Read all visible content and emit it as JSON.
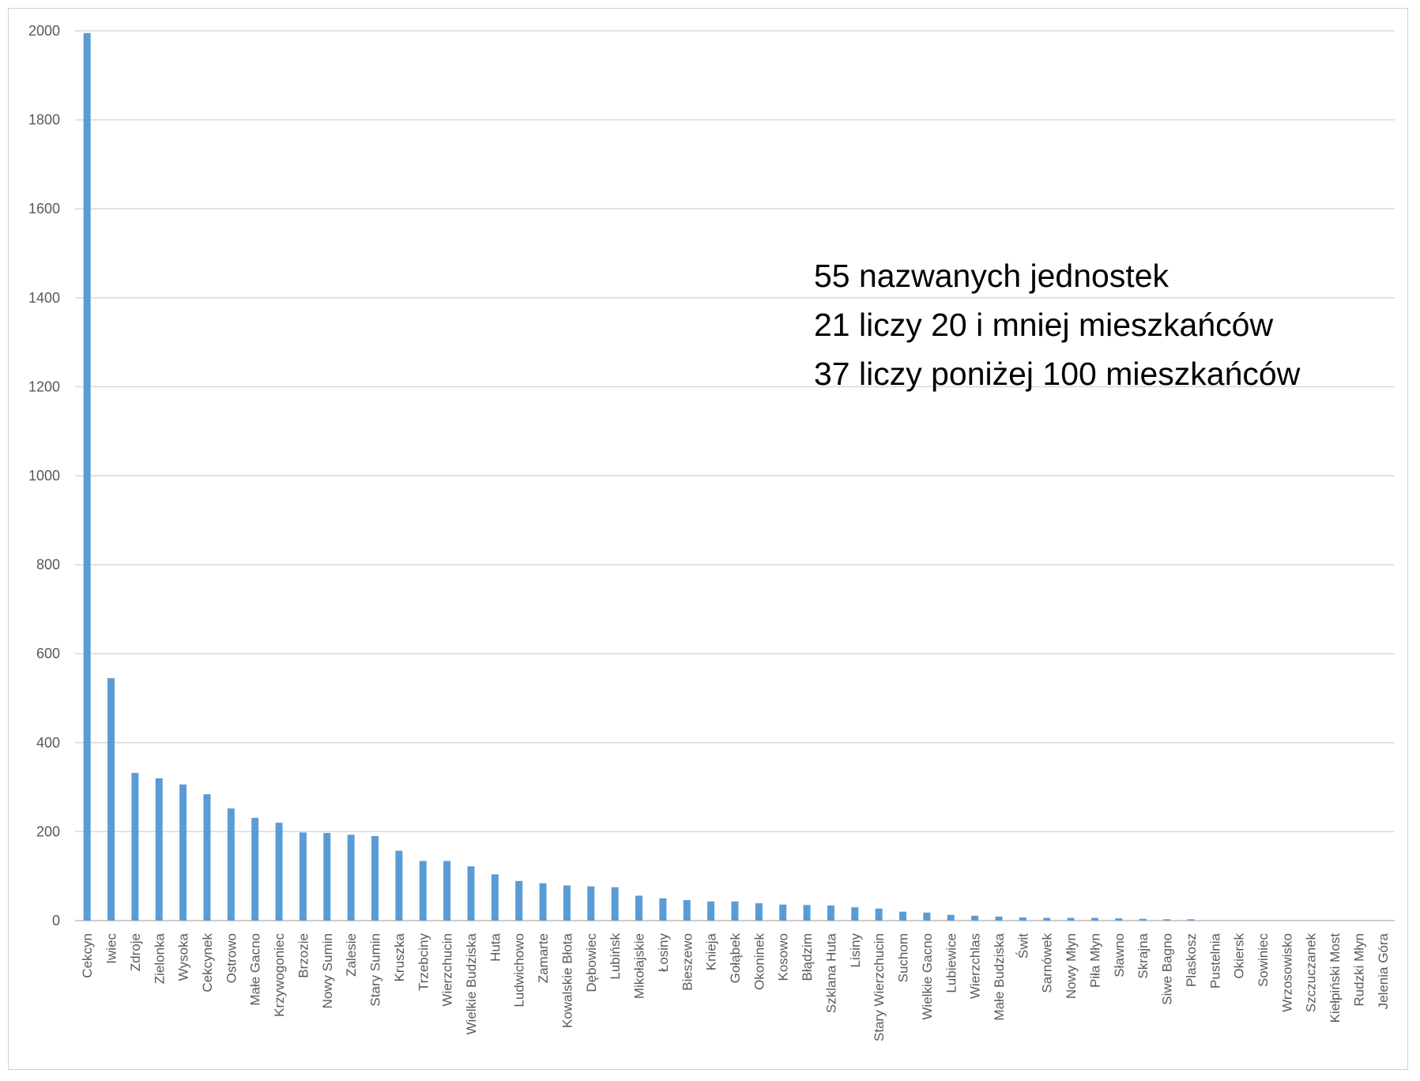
{
  "chart_data": {
    "type": "bar",
    "ylim": [
      0,
      2000
    ],
    "yticks": [
      0,
      200,
      400,
      600,
      800,
      1000,
      1200,
      1400,
      1600,
      1800,
      2000
    ],
    "grid": true,
    "legend": "none",
    "colors": {
      "bar": "#5b9bd5",
      "grid": "#d9d9d9",
      "text": "#595959"
    },
    "categories": [
      "Cekcyn",
      "Iwiec",
      "Zdroje",
      "Zielonka",
      "Wysoka",
      "Cekcynek",
      "Ostrowo",
      "Małe Gacno",
      "Krzywogoniec",
      "Brzozie",
      "Nowy Sumin",
      "Zalesie",
      "Stary Sumin",
      "Kruszka",
      "Trzebciny",
      "Wierzchucin",
      "Wielkie Budziska",
      "Huta",
      "Ludwichowo",
      "Zamarte",
      "Kowalskie Błota",
      "Dębowiec",
      "Lubińsk",
      "Mikołajskie",
      "Łosiny",
      "Bieszewo",
      "Knieja",
      "Gołąbek",
      "Okoninek",
      "Kosowo",
      "Błądzim",
      "Szklana Huta",
      "Lisiny",
      "Stary Wierzchucin",
      "Suchom",
      "Wielkie Gacno",
      "Lubiewice",
      "Wierzchlas",
      "Małe Budziska",
      "Świt",
      "Sarnówek",
      "Nowy Młyn",
      "Piła Młyn",
      "Sławno",
      "Skrajna",
      "Siwe Bagno",
      "Plaskosz",
      "Pustelnia",
      "Okiersk",
      "Sowiniec",
      "Wrzosowisko",
      "Szczuczanek",
      "Kiełpiński Most",
      "Rudzki Młyn",
      "Jelenia Góra"
    ],
    "values": [
      1995,
      545,
      332,
      320,
      306,
      284,
      252,
      231,
      220,
      198,
      197,
      193,
      190,
      157,
      134,
      134,
      122,
      104,
      89,
      84,
      79,
      77,
      75,
      56,
      50,
      46,
      43,
      43,
      39,
      36,
      35,
      34,
      30,
      27,
      20,
      18,
      13,
      11,
      9,
      7,
      6,
      6,
      6,
      5,
      4,
      3,
      3,
      0,
      0,
      0,
      0,
      0,
      0,
      0,
      0
    ]
  },
  "annotation": {
    "line1": "55 nazwanych jednostek",
    "line2": "21 liczy 20 i mniej mieszkańców",
    "line3": "37 liczy poniżej 100 mieszkańców"
  }
}
